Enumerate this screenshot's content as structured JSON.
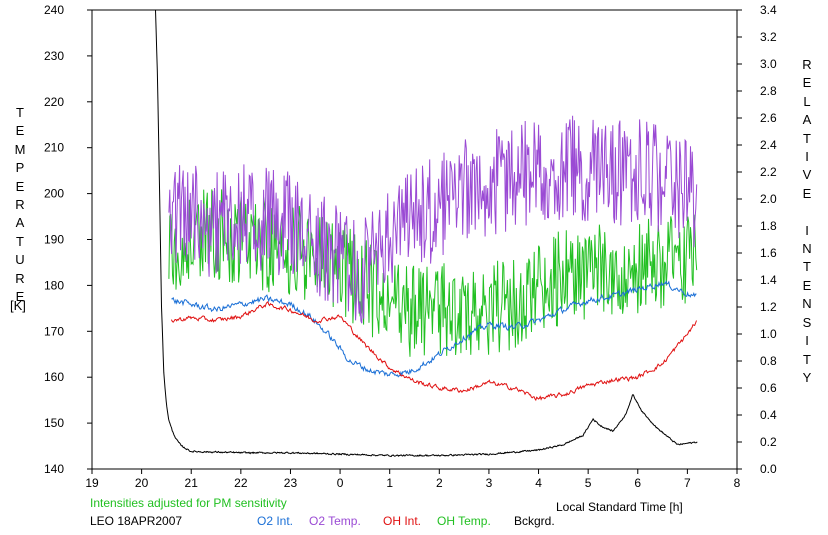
{
  "chart_data": {
    "type": "line",
    "x_axis": {
      "label": "Local Standard Time [h]",
      "range": [
        19,
        32
      ],
      "tick_values": [
        19,
        20,
        21,
        22,
        23,
        24,
        25,
        26,
        27,
        28,
        29,
        30,
        31,
        32
      ],
      "tick_labels": [
        "19",
        "20",
        "21",
        "22",
        "23",
        "0",
        "1",
        "2",
        "3",
        "4",
        "5",
        "6",
        "7",
        "8"
      ]
    },
    "y_left": {
      "label": "TEMPERATURE",
      "unit": "[K]",
      "range": [
        140,
        240
      ],
      "ticks": [
        "140",
        "150",
        "160",
        "170",
        "180",
        "190",
        "200",
        "210",
        "220",
        "230",
        "240"
      ]
    },
    "y_right": {
      "label": "RELATIVE INTENSITY",
      "range": [
        0,
        3.4
      ],
      "ticks": [
        "0.0",
        "0.2",
        "0.4",
        "0.6",
        "0.8",
        "1.0",
        "1.2",
        "1.4",
        "1.6",
        "1.8",
        "2.0",
        "2.2",
        "2.4",
        "2.6",
        "2.8",
        "3.0",
        "3.2",
        "3.4"
      ]
    },
    "note": "Intensities adjusted for PM sensitivity",
    "station": "LEO 18APR2007",
    "grid": false,
    "legend_position": "bottom",
    "series": [
      {
        "name": "O2 Int.",
        "axis": "right",
        "color": "#1a6fd6",
        "noise": 0.025,
        "x": [
          20.6,
          21.0,
          21.5,
          22.0,
          22.5,
          23.0,
          23.4,
          23.8,
          24.2,
          24.6,
          25.0,
          25.4,
          25.8,
          26.2,
          26.6,
          27.0,
          27.5,
          28.0,
          28.5,
          29.0,
          29.5,
          30.0,
          30.5,
          31.0,
          31.2
        ],
        "y": [
          1.25,
          1.22,
          1.18,
          1.22,
          1.26,
          1.22,
          1.13,
          0.98,
          0.8,
          0.73,
          0.7,
          0.72,
          0.8,
          0.9,
          1.0,
          1.07,
          1.05,
          1.1,
          1.18,
          1.25,
          1.28,
          1.33,
          1.38,
          1.3,
          1.27
        ]
      },
      {
        "name": "O2 Temp.",
        "axis": "left",
        "color": "#9a4ad4",
        "noise": 9,
        "x": [
          20.55,
          21.0,
          21.5,
          22.0,
          22.5,
          23.0,
          23.5,
          24.0,
          24.5,
          25.0,
          25.5,
          26.0,
          26.5,
          27.0,
          27.5,
          28.0,
          28.5,
          29.0,
          29.5,
          30.0,
          30.5,
          31.0,
          31.2
        ],
        "y": [
          196,
          195,
          193,
          195,
          194,
          193,
          190,
          185,
          183,
          190,
          194,
          197,
          200,
          202,
          204,
          205,
          206,
          205,
          204,
          205,
          203,
          200,
          197
        ]
      },
      {
        "name": "OH Int.",
        "axis": "right",
        "color": "#e01010",
        "noise": 0.018,
        "x": [
          20.6,
          21.0,
          21.5,
          22.0,
          22.5,
          23.0,
          23.5,
          24.0,
          24.5,
          25.0,
          25.5,
          26.0,
          26.5,
          27.0,
          27.5,
          28.0,
          28.5,
          29.0,
          29.5,
          30.0,
          30.5,
          31.0,
          31.2
        ],
        "y": [
          1.1,
          1.12,
          1.1,
          1.13,
          1.22,
          1.18,
          1.1,
          1.13,
          0.92,
          0.75,
          0.65,
          0.6,
          0.58,
          0.64,
          0.6,
          0.52,
          0.55,
          0.62,
          0.66,
          0.68,
          0.78,
          1.0,
          1.1
        ]
      },
      {
        "name": "OH Temp.",
        "axis": "left",
        "color": "#22c022",
        "noise": 8,
        "x": [
          20.55,
          21.0,
          21.5,
          22.0,
          22.5,
          23.0,
          23.5,
          24.0,
          24.5,
          25.0,
          25.5,
          26.0,
          26.5,
          27.0,
          27.5,
          28.0,
          28.5,
          29.0,
          29.5,
          30.0,
          30.5,
          31.0,
          31.2
        ],
        "y": [
          188,
          190,
          191,
          190,
          189,
          188,
          186,
          184,
          180,
          176,
          174,
          175,
          174,
          175,
          176,
          180,
          182,
          182,
          184,
          184,
          185,
          186,
          187
        ]
      },
      {
        "name": "Bckgrd.",
        "axis": "right",
        "color": "#000000",
        "noise": 0.006,
        "x": [
          20.28,
          20.32,
          20.36,
          20.4,
          20.45,
          20.5,
          20.55,
          20.62,
          20.7,
          20.8,
          21.0,
          22.0,
          23.0,
          24.0,
          25.0,
          26.0,
          27.0,
          28.0,
          28.5,
          28.9,
          29.1,
          29.25,
          29.5,
          29.75,
          29.9,
          30.1,
          30.4,
          30.8,
          31.2
        ],
        "y": [
          3.4,
          2.9,
          2.1,
          1.2,
          0.7,
          0.48,
          0.36,
          0.28,
          0.22,
          0.17,
          0.13,
          0.12,
          0.12,
          0.11,
          0.1,
          0.1,
          0.11,
          0.14,
          0.18,
          0.25,
          0.37,
          0.32,
          0.28,
          0.4,
          0.55,
          0.42,
          0.3,
          0.18,
          0.2
        ]
      }
    ]
  }
}
